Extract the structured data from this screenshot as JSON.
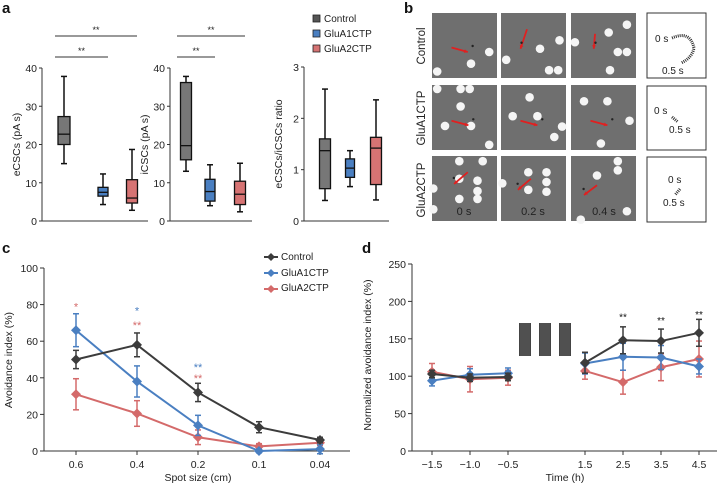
{
  "figure": {
    "panel_labels": [
      "a",
      "b",
      "c",
      "d"
    ]
  },
  "colors": {
    "control": "#555555",
    "control_line": "#3c3c3c",
    "glua1": "#4a7fc1",
    "glua2": "#d46a6a",
    "control_box": "#777777",
    "glua1_box": "#4a7fc1",
    "glua2_box": "#d67373"
  },
  "legend_a": {
    "items": [
      {
        "label": "Control",
        "color": "#555555"
      },
      {
        "label": "GluA1CTP",
        "color": "#4a7fc1"
      },
      {
        "label": "GluA2CTP",
        "color": "#d67373"
      }
    ]
  },
  "panel_b": {
    "row_labels": [
      "Control",
      "GluA1CTP",
      "GluA2CTP"
    ],
    "time_labels": [
      "0 s",
      "0.2 s",
      "0.4 s"
    ],
    "trajectory_labels": {
      "start": "0 s",
      "end": "0.5 s"
    }
  },
  "chart_data": [
    {
      "id": "a1",
      "type": "box",
      "ylabel": "eCSCs (pA s)",
      "ylim": [
        0,
        40
      ],
      "yticks": [
        0,
        10,
        20,
        30,
        40
      ],
      "groups": [
        "Control",
        "GluA1CTP",
        "GluA2CTP"
      ],
      "boxes": [
        {
          "min": 15,
          "q1": 20,
          "median": 22.7,
          "q3": 27.3,
          "max": 37.8
        },
        {
          "min": 4.3,
          "q1": 6.5,
          "median": 7.5,
          "q3": 8.8,
          "max": 12.3
        },
        {
          "min": 2.8,
          "q1": 4.7,
          "median": 6.0,
          "q3": 10.8,
          "max": 18.7
        }
      ],
      "significance": [
        {
          "from": 0,
          "to": 1,
          "label": "**"
        },
        {
          "from": 0,
          "to": 2,
          "label": "**"
        }
      ]
    },
    {
      "id": "a2",
      "type": "box",
      "ylabel": "iCSCs (pA s)",
      "ylim": [
        0,
        40
      ],
      "yticks": [
        0,
        10,
        20,
        30,
        40
      ],
      "groups": [
        "Control",
        "GluA1CTP",
        "GluA2CTP"
      ],
      "boxes": [
        {
          "min": 13,
          "q1": 16,
          "median": 19.7,
          "q3": 36.2,
          "max": 37.8
        },
        {
          "min": 4.0,
          "q1": 5.2,
          "median": 7.7,
          "q3": 10.9,
          "max": 14.7
        },
        {
          "min": 2.4,
          "q1": 4.3,
          "median": 7.0,
          "q3": 10.4,
          "max": 15.1
        }
      ],
      "significance": [
        {
          "from": 0,
          "to": 1,
          "label": "**"
        },
        {
          "from": 0,
          "to": 2,
          "label": "**"
        }
      ]
    },
    {
      "id": "a3",
      "type": "box",
      "ylabel": "eCSCs/iCSCs ratio",
      "ylim": [
        0,
        3
      ],
      "yticks": [
        0,
        1,
        2,
        3
      ],
      "groups": [
        "Control",
        "GluA1CTP",
        "GluA2CTP"
      ],
      "boxes": [
        {
          "min": 0.4,
          "q1": 0.63,
          "median": 1.37,
          "q3": 1.6,
          "max": 2.57
        },
        {
          "min": 0.67,
          "q1": 0.85,
          "median": 1.03,
          "q3": 1.21,
          "max": 1.37
        },
        {
          "min": 0.41,
          "q1": 0.71,
          "median": 1.42,
          "q3": 1.63,
          "max": 2.36
        }
      ],
      "significance": []
    },
    {
      "id": "c",
      "type": "line",
      "xlabel": "Spot size (cm)",
      "ylabel": "Avoidance index (%)",
      "categories": [
        "0.6",
        "0.4",
        "0.2",
        "0.1",
        "0.04"
      ],
      "ylim": [
        0,
        100
      ],
      "yticks": [
        0,
        20,
        40,
        60,
        80,
        100
      ],
      "legend": "top-right",
      "series": [
        {
          "name": "Control",
          "color": "#3c3c3c",
          "values": [
            50,
            58,
            32,
            13,
            6
          ],
          "errors": [
            5,
            6.5,
            5,
            3,
            1.5
          ]
        },
        {
          "name": "GluA1CTP",
          "color": "#4a7fc1",
          "values": [
            66,
            38,
            14,
            0,
            1
          ],
          "errors": [
            9,
            8.5,
            5.5,
            1,
            2.5
          ]
        },
        {
          "name": "GluA2CTP",
          "color": "#d46a6a",
          "values": [
            31,
            20.5,
            7.5,
            2.5,
            4.5
          ],
          "errors": [
            8.5,
            7,
            4,
            1.5,
            1.5
          ]
        }
      ],
      "annotations": [
        {
          "x": "0.6",
          "label": "*",
          "color": "#d46a6a",
          "y": 80
        },
        {
          "x": "0.4",
          "label": "*",
          "color": "#4a7fc1",
          "y": 78
        },
        {
          "x": "0.4",
          "label": "**",
          "color": "#d46a6a",
          "y": 70
        },
        {
          "x": "0.2",
          "label": "**",
          "color": "#4a7fc1",
          "y": 47
        },
        {
          "x": "0.2",
          "label": "**",
          "color": "#d46a6a",
          "y": 41
        }
      ]
    },
    {
      "id": "d",
      "type": "line",
      "xlabel": "Time (h)",
      "ylabel": "Normalized avoidance index (%)",
      "pre_x": [
        "−1.5",
        "−1.0",
        "−0.5"
      ],
      "post_x": [
        "1.5",
        "2.5",
        "3.5",
        "4.5"
      ],
      "ylim": [
        0,
        250
      ],
      "yticks": [
        0,
        50,
        100,
        150,
        200,
        250
      ],
      "series": [
        {
          "name": "Control",
          "color": "#3c3c3c",
          "pre": [
            103,
            98,
            99
          ],
          "pre_err": [
            5,
            5,
            5
          ],
          "post": [
            118,
            148,
            147,
            158
          ],
          "post_err": [
            14,
            18,
            16,
            18
          ]
        },
        {
          "name": "GluA1CTP",
          "color": "#4a7fc1",
          "pre": [
            94,
            102,
            104
          ],
          "pre_err": [
            7,
            8,
            7
          ],
          "post": [
            117,
            126,
            125,
            113
          ],
          "post_err": [
            14,
            18,
            16,
            10
          ]
        },
        {
          "name": "GluA2CTP",
          "color": "#d46a6a",
          "pre": [
            106,
            96,
            98
          ],
          "pre_err": [
            11,
            17,
            10
          ],
          "post": [
            107,
            92,
            112,
            123
          ],
          "post_err": [
            11,
            16,
            18,
            24
          ]
        }
      ],
      "annotations": [
        {
          "x": "2.5",
          "label": "**",
          "y": 180
        },
        {
          "x": "3.5",
          "label": "**",
          "y": 175
        },
        {
          "x": "4.5",
          "label": "**",
          "y": 183
        }
      ],
      "stimulus_blocks": 3
    }
  ]
}
